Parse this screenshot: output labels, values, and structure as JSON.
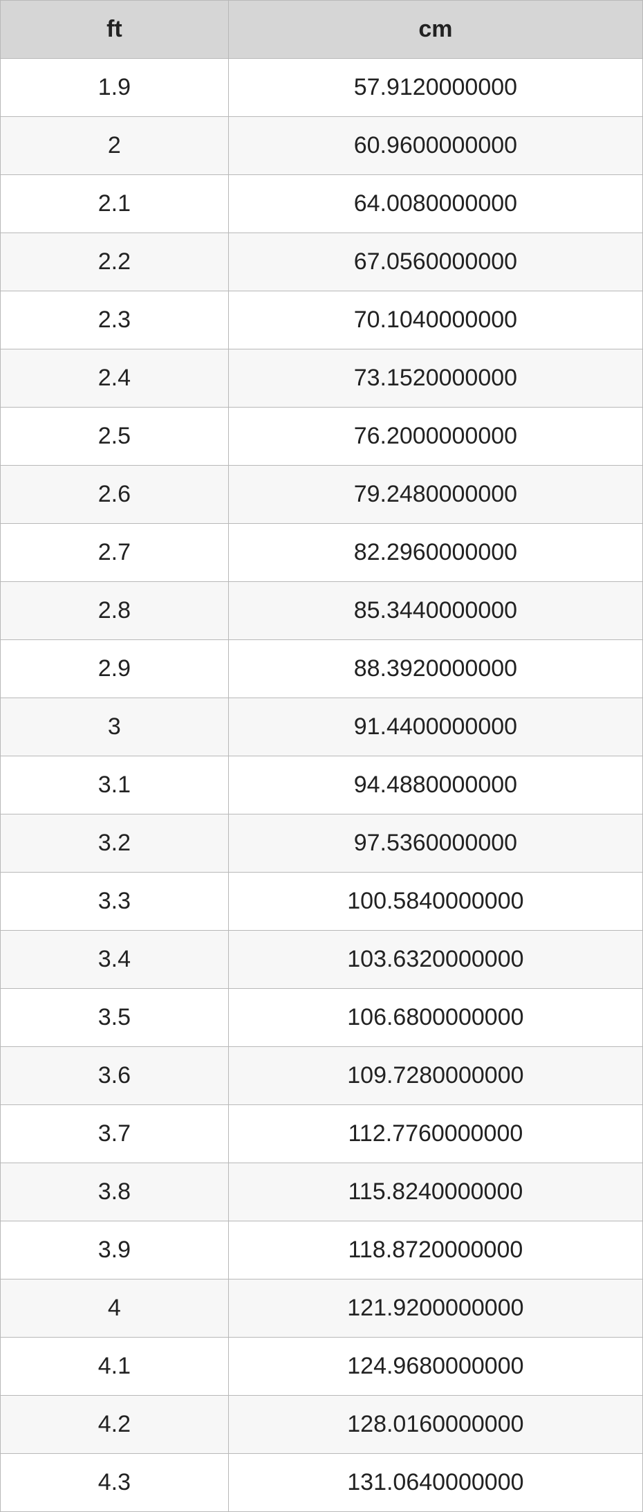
{
  "table": {
    "columns": [
      {
        "key": "ft",
        "label": "ft"
      },
      {
        "key": "cm",
        "label": "cm"
      }
    ],
    "column_widths_pct": [
      35.5,
      64.5
    ],
    "header_bg": "#d6d6d6",
    "row_bg_odd": "#ffffff",
    "row_bg_even": "#f7f7f7",
    "border_color": "#b8b8b8",
    "text_color": "#222222",
    "font_family": "Arial, Helvetica, sans-serif",
    "header_font_size_pt": 26,
    "cell_font_size_pt": 26,
    "header_font_weight": "bold",
    "rows": [
      {
        "ft": "1.9",
        "cm": "57.9120000000"
      },
      {
        "ft": "2",
        "cm": "60.9600000000"
      },
      {
        "ft": "2.1",
        "cm": "64.0080000000"
      },
      {
        "ft": "2.2",
        "cm": "67.0560000000"
      },
      {
        "ft": "2.3",
        "cm": "70.1040000000"
      },
      {
        "ft": "2.4",
        "cm": "73.1520000000"
      },
      {
        "ft": "2.5",
        "cm": "76.2000000000"
      },
      {
        "ft": "2.6",
        "cm": "79.2480000000"
      },
      {
        "ft": "2.7",
        "cm": "82.2960000000"
      },
      {
        "ft": "2.8",
        "cm": "85.3440000000"
      },
      {
        "ft": "2.9",
        "cm": "88.3920000000"
      },
      {
        "ft": "3",
        "cm": "91.4400000000"
      },
      {
        "ft": "3.1",
        "cm": "94.4880000000"
      },
      {
        "ft": "3.2",
        "cm": "97.5360000000"
      },
      {
        "ft": "3.3",
        "cm": "100.5840000000"
      },
      {
        "ft": "3.4",
        "cm": "103.6320000000"
      },
      {
        "ft": "3.5",
        "cm": "106.6800000000"
      },
      {
        "ft": "3.6",
        "cm": "109.7280000000"
      },
      {
        "ft": "3.7",
        "cm": "112.7760000000"
      },
      {
        "ft": "3.8",
        "cm": "115.8240000000"
      },
      {
        "ft": "3.9",
        "cm": "118.8720000000"
      },
      {
        "ft": "4",
        "cm": "121.9200000000"
      },
      {
        "ft": "4.1",
        "cm": "124.9680000000"
      },
      {
        "ft": "4.2",
        "cm": "128.0160000000"
      },
      {
        "ft": "4.3",
        "cm": "131.0640000000"
      }
    ]
  }
}
